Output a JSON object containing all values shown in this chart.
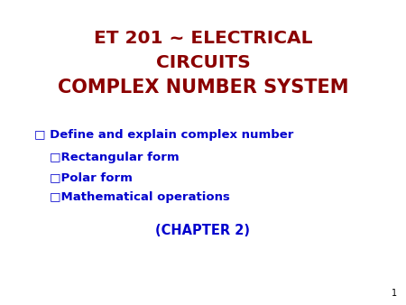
{
  "title_line1": "ET 201 ~ ELECTRICAL",
  "title_line2": "CIRCUITS",
  "title_line3": "COMPLEX NUMBER SYSTEM",
  "title_color": "#8B0000",
  "bullet_color": "#0000CD",
  "chapter_color": "#0000CD",
  "background_color": "#FFFFFF",
  "page_number": "1",
  "page_number_color": "#000000",
  "bullet1": " Define and explain complex number",
  "sub_bullet1": "Rectangular form",
  "sub_bullet2": "Polar form",
  "sub_bullet3": "Mathematical operations",
  "chapter": "(CHAPTER 2)",
  "title_fontsize": 14.5,
  "bullet_fontsize": 9.5,
  "sub_bullet_fontsize": 9.5,
  "chapter_fontsize": 10.5,
  "page_fontsize": 7
}
